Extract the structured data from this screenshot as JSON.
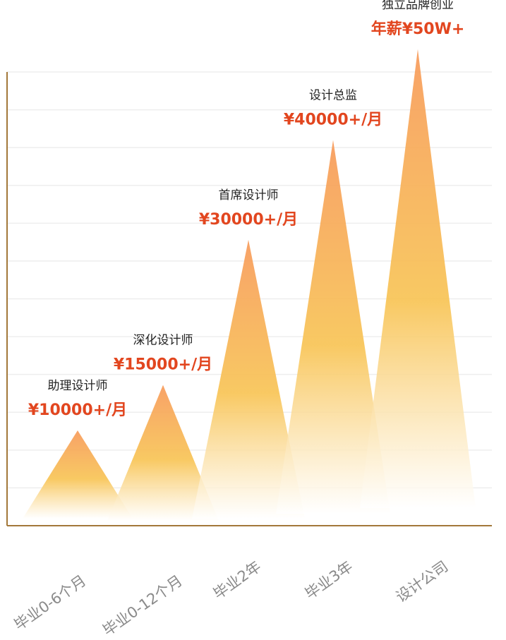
{
  "colors": {
    "axis": "#a3783a",
    "grid": "#eeeeee",
    "peak_top": "#f79a5a",
    "peak_mid": "#f8c455",
    "peak_fade": "#ffffff",
    "salary_text": "#e2461f"
  },
  "chart_data": {
    "type": "area",
    "title": "",
    "xlabel": "",
    "ylabel": "",
    "ylim": [
      0,
      100
    ],
    "grid": true,
    "categories": [
      "毕业0-6个月",
      "毕业0-12个月",
      "毕业2年",
      "毕业3年",
      "设计公司"
    ],
    "values": [
      21,
      31,
      63,
      85,
      105
    ],
    "annotations": [
      {
        "role": "助理设计师",
        "salary": "¥10000+/月"
      },
      {
        "role": "深化设计师",
        "salary": "¥15000+/月"
      },
      {
        "role": "首席设计师",
        "salary": "¥30000+/月"
      },
      {
        "role": "设计总监",
        "salary": "¥40000+/月"
      },
      {
        "role": "独立品牌创业",
        "salary": "年薪¥50W+"
      }
    ]
  }
}
